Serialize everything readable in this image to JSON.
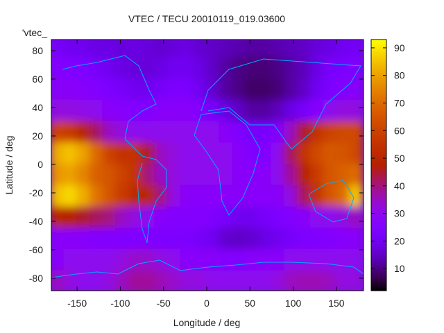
{
  "chart_data": {
    "type": "heatmap",
    "title": "VTEC / TECU 20010119_019.03600",
    "xlabel": "Longitude / deg",
    "ylabel": "Latitude / deg",
    "key_label": "'vtec_",
    "xlim": [
      -180,
      180
    ],
    "ylim": [
      -90,
      90
    ],
    "xticks": [
      -150,
      -100,
      -50,
      0,
      50,
      100,
      150
    ],
    "yticks": [
      -80,
      -60,
      -40,
      -20,
      0,
      20,
      40,
      60,
      80
    ],
    "colorbar": {
      "range": [
        2,
        93
      ],
      "ticks": [
        10,
        20,
        30,
        40,
        50,
        60,
        70,
        80,
        90
      ],
      "palette": "black-purple-red-yellow"
    },
    "coastline_color": "#00aaff",
    "grid_lon_centers": [
      -172.5,
      -157.5,
      -142.5,
      -127.5,
      -112.5,
      -97.5,
      -82.5,
      -67.5,
      -52.5,
      -37.5,
      -22.5,
      -7.5,
      7.5,
      22.5,
      37.5,
      52.5,
      67.5,
      82.5,
      97.5,
      112.5,
      127.5,
      142.5,
      157.5,
      172.5
    ],
    "grid_lat_centers": [
      82.5,
      67.5,
      52.5,
      37.5,
      22.5,
      7.5,
      -7.5,
      -22.5,
      -37.5,
      -52.5,
      -67.5,
      -82.5
    ],
    "values": [
      [
        22,
        20,
        20,
        18,
        18,
        17,
        18,
        17,
        16,
        17,
        18,
        16,
        15,
        14,
        13,
        12,
        12,
        13,
        14,
        15,
        17,
        18,
        20,
        21
      ],
      [
        26,
        25,
        24,
        22,
        20,
        18,
        17,
        17,
        18,
        20,
        20,
        18,
        15,
        12,
        10,
        9,
        9,
        10,
        12,
        14,
        18,
        22,
        24,
        25
      ],
      [
        28,
        28,
        27,
        26,
        24,
        22,
        20,
        20,
        22,
        24,
        24,
        20,
        16,
        12,
        10,
        8,
        8,
        9,
        12,
        15,
        20,
        24,
        26,
        27
      ],
      [
        32,
        32,
        31,
        30,
        28,
        27,
        26,
        26,
        28,
        28,
        28,
        26,
        22,
        18,
        15,
        12,
        12,
        14,
        18,
        22,
        26,
        30,
        32,
        32
      ],
      [
        60,
        58,
        50,
        42,
        35,
        32,
        30,
        30,
        30,
        30,
        30,
        30,
        30,
        28,
        25,
        22,
        22,
        26,
        35,
        45,
        55,
        60,
        62,
        62
      ],
      [
        82,
        85,
        80,
        70,
        60,
        55,
        55,
        45,
        35,
        32,
        30,
        30,
        30,
        30,
        28,
        25,
        25,
        30,
        42,
        55,
        62,
        66,
        65,
        62
      ],
      [
        78,
        80,
        75,
        68,
        65,
        60,
        55,
        40,
        35,
        32,
        30,
        30,
        30,
        30,
        28,
        28,
        28,
        30,
        38,
        48,
        58,
        65,
        68,
        70
      ],
      [
        85,
        88,
        82,
        72,
        65,
        58,
        52,
        50,
        40,
        32,
        28,
        28,
        28,
        28,
        28,
        28,
        28,
        28,
        32,
        42,
        55,
        65,
        70,
        85
      ],
      [
        50,
        48,
        45,
        42,
        40,
        35,
        32,
        30,
        28,
        26,
        26,
        26,
        25,
        22,
        20,
        20,
        22,
        24,
        26,
        28,
        30,
        30,
        32,
        35
      ],
      [
        28,
        28,
        27,
        26,
        26,
        25,
        25,
        25,
        24,
        24,
        24,
        22,
        20,
        16,
        15,
        16,
        18,
        20,
        22,
        24,
        25,
        26,
        27,
        28
      ],
      [
        28,
        30,
        30,
        30,
        30,
        32,
        34,
        34,
        32,
        30,
        28,
        28,
        28,
        26,
        26,
        28,
        28,
        28,
        30,
        30,
        30,
        30,
        30,
        30
      ],
      [
        35,
        32,
        30,
        30,
        32,
        35,
        38,
        38,
        36,
        34,
        32,
        32,
        30,
        30,
        30,
        30,
        30,
        32,
        35,
        36,
        36,
        35,
        32,
        32
      ]
    ]
  }
}
